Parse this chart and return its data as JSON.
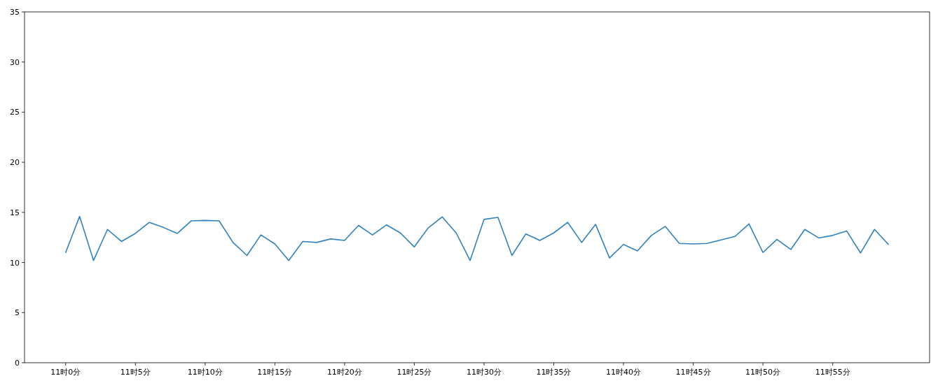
{
  "chart_data": {
    "type": "line",
    "categories": [
      "11时0分",
      null,
      null,
      null,
      null,
      "11时5分",
      null,
      null,
      null,
      null,
      "11时10分",
      null,
      null,
      null,
      null,
      "11时15分",
      null,
      null,
      null,
      null,
      "11时20分",
      null,
      null,
      null,
      null,
      "11时25分",
      null,
      null,
      null,
      null,
      "11时30分",
      null,
      null,
      null,
      null,
      "11时35分",
      null,
      null,
      null,
      null,
      "11时40分",
      null,
      null,
      null,
      null,
      "11时45分",
      null,
      null,
      null,
      null,
      "11时50分",
      null,
      null,
      null,
      null,
      "11时55分",
      null,
      null,
      null,
      null
    ],
    "series": [
      {
        "color": "#3182bd",
        "values": [
          11.0,
          14.6,
          10.2,
          13.3,
          12.1,
          12.9,
          14.0,
          13.5,
          12.9,
          14.15,
          14.2,
          14.15,
          12.0,
          10.7,
          12.75,
          11.85,
          10.2,
          12.1,
          12.0,
          12.35,
          12.2,
          13.7,
          12.75,
          13.75,
          12.95,
          11.55,
          13.45,
          14.55,
          12.95,
          10.2,
          14.3,
          14.5,
          10.7,
          12.85,
          12.2,
          12.95,
          14.0,
          12.0,
          13.8,
          10.45,
          11.8,
          11.15,
          12.7,
          13.6,
          11.9,
          11.85,
          11.9,
          12.25,
          12.6,
          13.85,
          11.0,
          12.3,
          11.3,
          13.3,
          12.45,
          12.7,
          13.15,
          10.95,
          13.3,
          11.8
        ]
      }
    ],
    "ylim": [
      0,
      35
    ],
    "yticks": [
      0,
      5,
      10,
      15,
      20,
      25,
      30,
      35
    ],
    "grid": false
  }
}
